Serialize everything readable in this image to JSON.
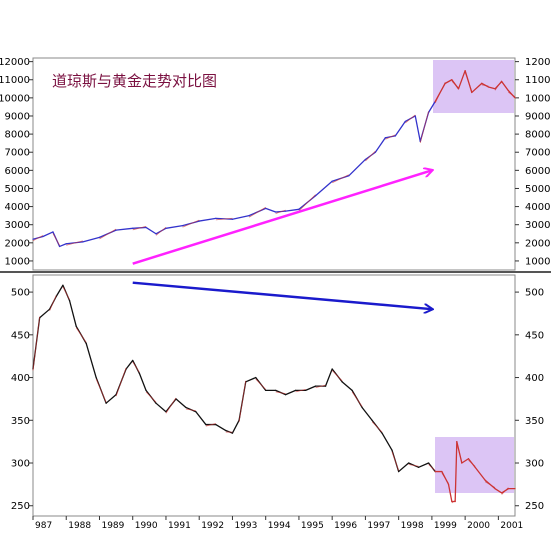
{
  "chart_data": [
    {
      "type": "line",
      "title": "道琼斯与黄金走势对比图",
      "xlabel": "",
      "ylabel": "",
      "xlim": [
        1987.0,
        2001.5
      ],
      "ylim": [
        500,
        12200
      ],
      "y_ticks": [
        1000,
        2000,
        3000,
        4000,
        5000,
        6000,
        7000,
        8000,
        9000,
        10000,
        11000,
        12000
      ],
      "grid": false,
      "colors": {
        "line": "#3333cc",
        "highlight_line": "#cc3333",
        "trend_arrow": "#ff22ff",
        "highlight_box": "#dcc5f5"
      },
      "highlight_x_range": [
        1999.0,
        2001.5
      ],
      "trend_arrow": {
        "from": [
          1990.0,
          850
        ],
        "to": [
          1999.0,
          6000
        ]
      },
      "series": [
        {
          "x": [
            1987.0,
            1987.3,
            1987.6,
            1987.8,
            1988.0,
            1988.5,
            1989.0,
            1989.5,
            1990.0,
            1990.4,
            1990.7,
            1991.0,
            1991.5,
            1992.0,
            1992.5,
            1993.0,
            1993.5,
            1994.0,
            1994.3,
            1994.6,
            1995.0,
            1995.5,
            1996.0,
            1996.5,
            1997.0,
            1997.3,
            1997.6,
            1997.9,
            1998.2,
            1998.5,
            1998.65,
            1998.9,
            1999.1,
            1999.4,
            1999.6,
            1999.8,
            2000.0,
            2000.2,
            2000.5,
            2000.7,
            2000.9,
            2001.1,
            2001.3,
            2001.5
          ],
          "values": [
            2200,
            2350,
            2600,
            1800,
            1950,
            2050,
            2300,
            2700,
            2800,
            2850,
            2500,
            2800,
            2950,
            3200,
            3350,
            3300,
            3500,
            3900,
            3700,
            3750,
            3850,
            4600,
            5400,
            5700,
            6600,
            7000,
            7800,
            7900,
            8700,
            9000,
            7600,
            9200,
            9800,
            10800,
            11000,
            10500,
            11500,
            10300,
            10800,
            10600,
            10500,
            10900,
            10400,
            10000
          ]
        }
      ]
    },
    {
      "type": "line",
      "xlabel": "",
      "ylabel": "",
      "xlim": [
        1987.0,
        2001.5
      ],
      "ylim": [
        238,
        520
      ],
      "y_ticks": [
        250,
        300,
        350,
        400,
        450,
        500
      ],
      "x_ticks": [
        "987",
        "1988",
        "1989",
        "1990",
        "1991",
        "1992",
        "1993",
        "1994",
        "1995",
        "1996",
        "1997",
        "1998",
        "1999",
        "2000",
        "2001"
      ],
      "grid": false,
      "colors": {
        "line": "#111111",
        "highlight_line": "#cc3333",
        "trend_arrow": "#1a1acc",
        "highlight_box": "#dcc5f5"
      },
      "highlight_x_range": [
        1999.0,
        2001.5
      ],
      "trend_arrow": {
        "from": [
          1990.0,
          511
        ],
        "to": [
          1999.0,
          480
        ]
      },
      "series": [
        {
          "x": [
            1987.0,
            1987.2,
            1987.5,
            1987.7,
            1987.9,
            1988.1,
            1988.3,
            1988.6,
            1988.9,
            1989.2,
            1989.5,
            1989.8,
            1990.0,
            1990.2,
            1990.4,
            1990.7,
            1991.0,
            1991.3,
            1991.6,
            1991.9,
            1992.2,
            1992.5,
            1992.8,
            1993.0,
            1993.2,
            1993.4,
            1993.7,
            1994.0,
            1994.3,
            1994.6,
            1994.9,
            1995.2,
            1995.5,
            1995.8,
            1996.0,
            1996.3,
            1996.6,
            1996.9,
            1997.2,
            1997.5,
            1997.8,
            1998.0,
            1998.3,
            1998.6,
            1998.9,
            1999.1,
            1999.3,
            1999.5,
            1999.6,
            1999.7,
            1999.75,
            1999.9,
            2000.1,
            2000.3,
            2000.6,
            2000.9,
            2001.1,
            2001.3,
            2001.5
          ],
          "values": [
            410,
            470,
            480,
            495,
            508,
            490,
            460,
            440,
            400,
            370,
            380,
            410,
            420,
            405,
            385,
            370,
            360,
            375,
            365,
            360,
            345,
            345,
            338,
            335,
            350,
            395,
            400,
            385,
            385,
            380,
            385,
            385,
            390,
            390,
            410,
            395,
            385,
            365,
            350,
            335,
            315,
            290,
            300,
            295,
            300,
            290,
            290,
            275,
            255,
            255,
            325,
            300,
            305,
            295,
            280,
            270,
            265,
            270,
            270
          ]
        }
      ]
    }
  ]
}
